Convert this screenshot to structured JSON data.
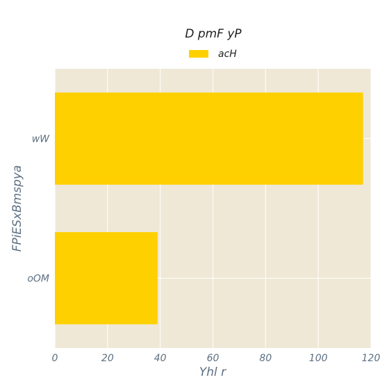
{
  "chart_data": {
    "type": "bar",
    "orientation": "horizontal",
    "title": "D  pmF yP",
    "xlabel": "Yhl r",
    "ylabel": "FPiESxBmspya",
    "categories": [
      "wW",
      "oOM"
    ],
    "series": [
      {
        "name": "acH",
        "values": [
          117,
          39
        ]
      }
    ],
    "xlim": [
      0,
      120
    ],
    "xticks": [
      0,
      20,
      40,
      60,
      80,
      100,
      120
    ],
    "grid": true,
    "legend": "top-center",
    "colors": {
      "bar": "#ffd000",
      "plot_background": "#efe8d6",
      "grid": "#ffffff",
      "text": "#5c6f82"
    }
  }
}
